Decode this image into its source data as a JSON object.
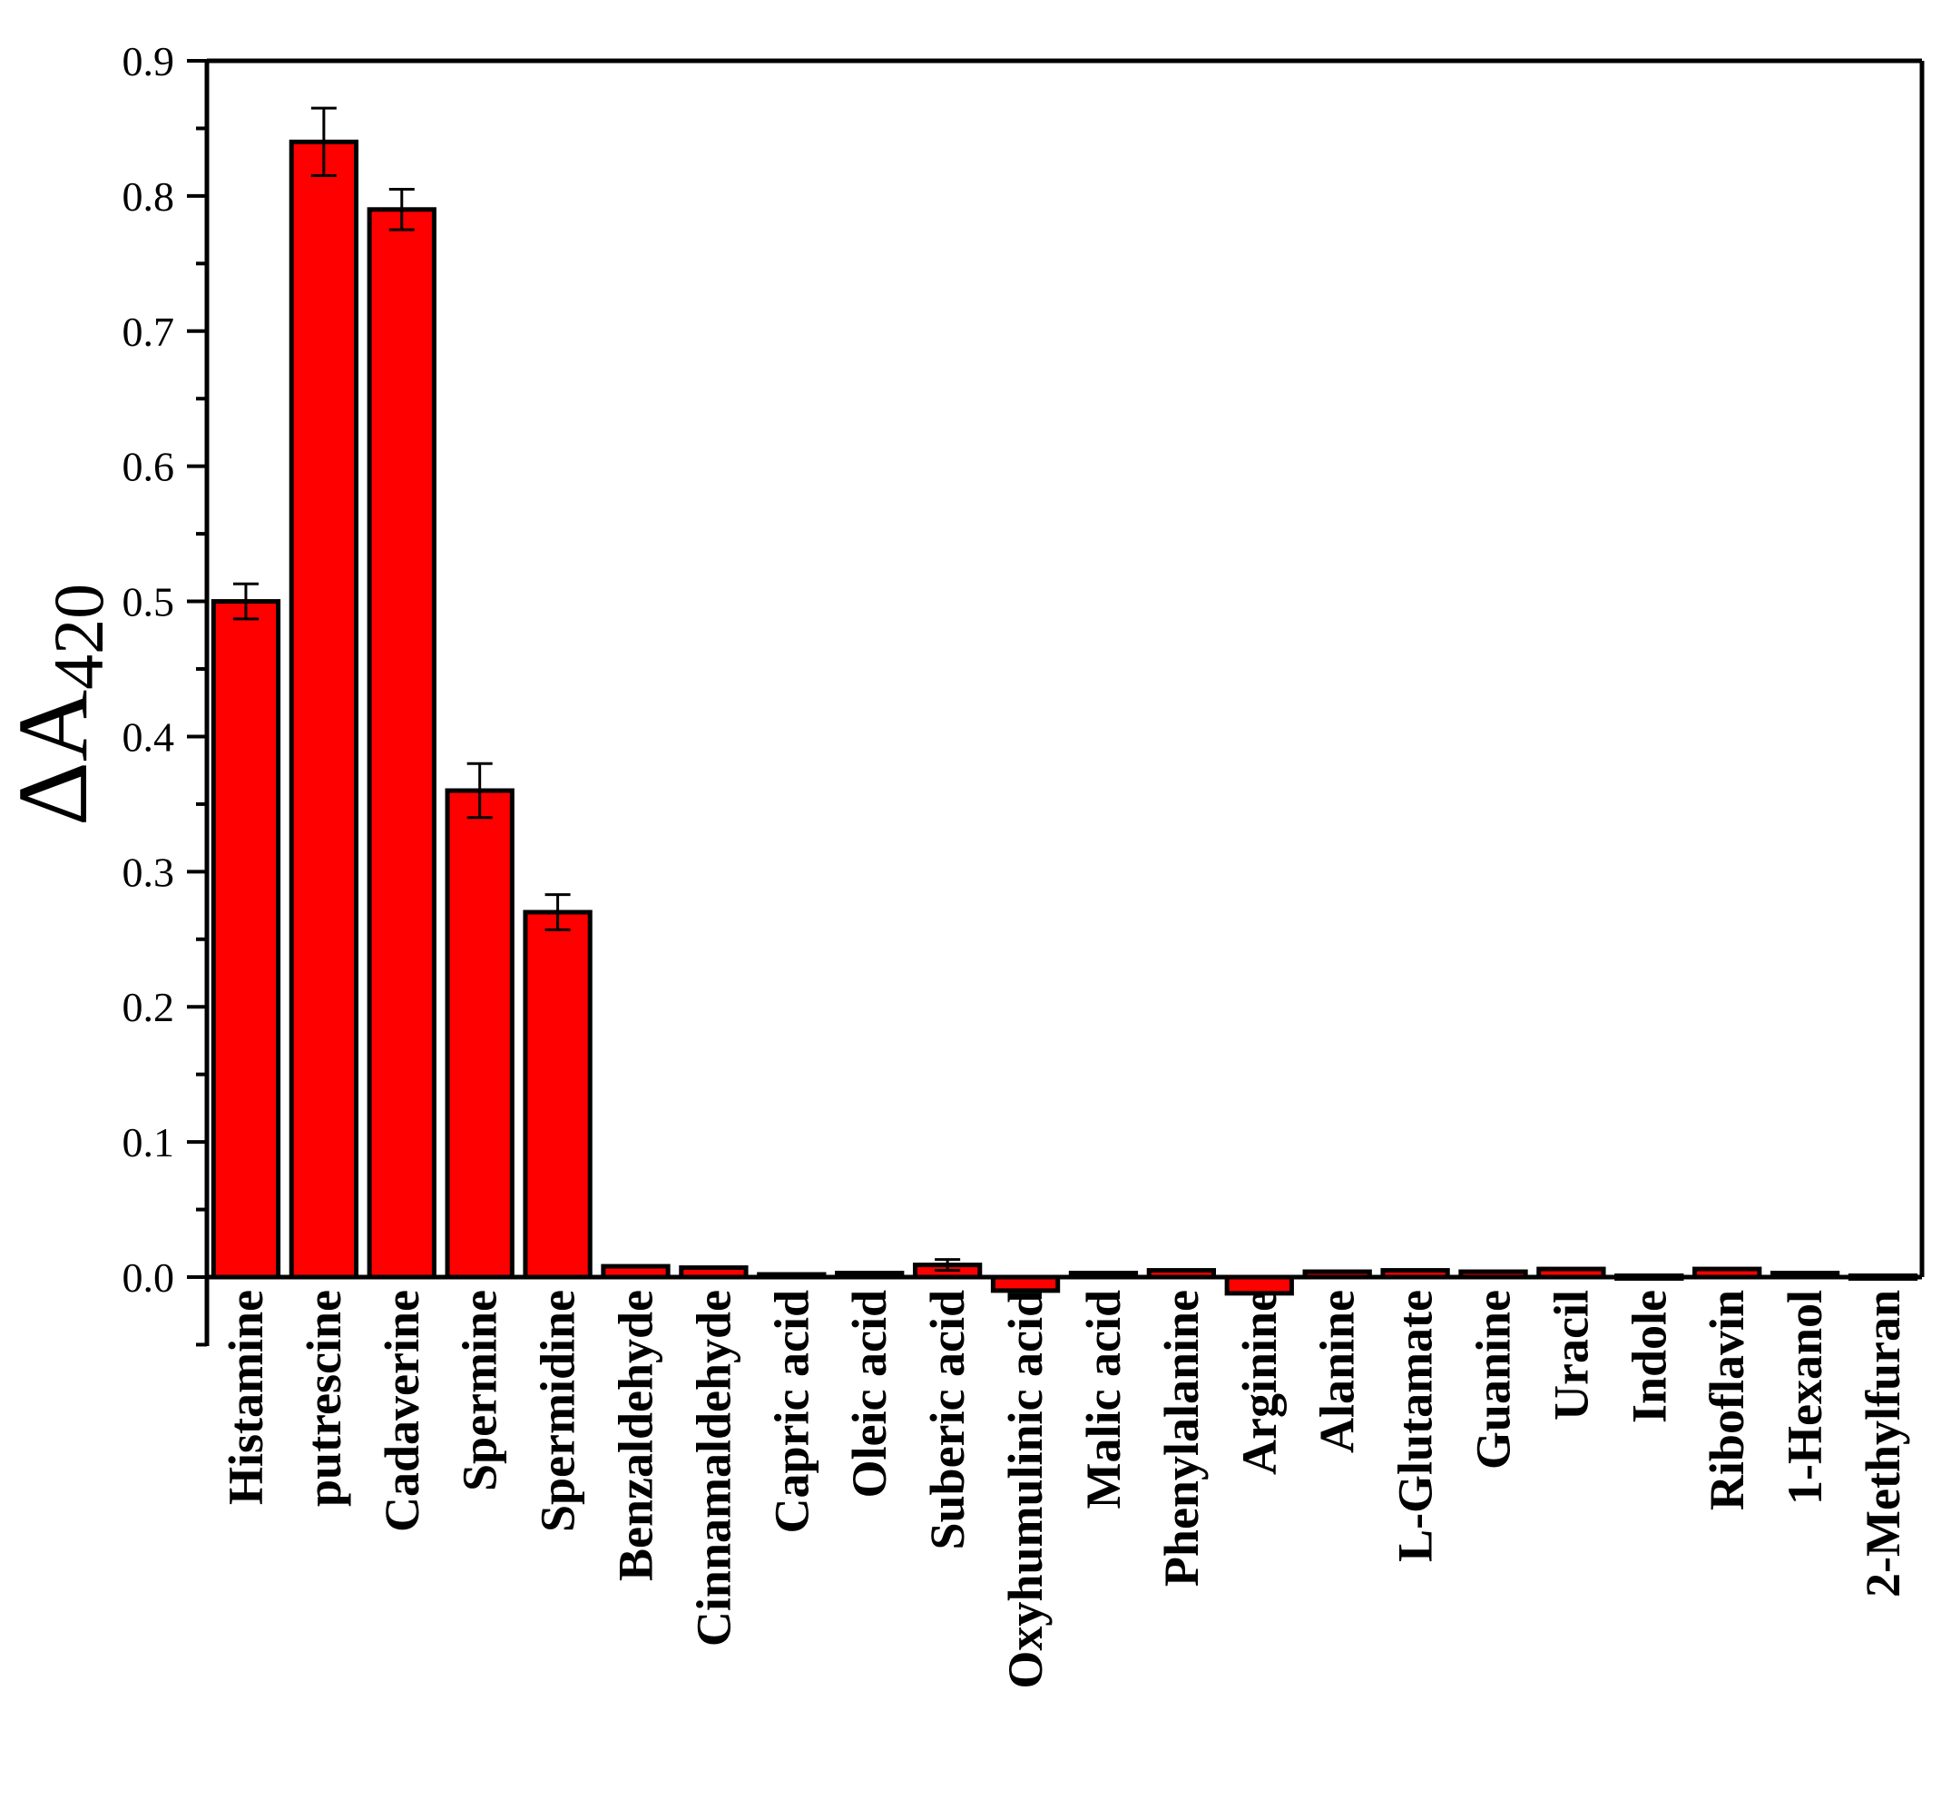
{
  "chart_data": {
    "type": "bar",
    "title": "",
    "xlabel": "",
    "ylabel": "ΔA",
    "ylabel_subscript": "420",
    "ylim": [
      -0.05,
      0.9
    ],
    "yticks": [
      "0.0",
      "0.1",
      "0.2",
      "0.3",
      "0.4",
      "0.5",
      "0.6",
      "0.7",
      "0.8",
      "0.9"
    ],
    "grid": false,
    "legend": "none",
    "bar_color": "#ff0000",
    "edge_color": "#000000",
    "categories": [
      "Histamine",
      "putrescine",
      "Cadaverine",
      "Spermine",
      "Spermidine",
      "Benzaldehyde",
      "Cinnamaldehyde",
      "Capric acid",
      "Oleic acid",
      "Suberic acid",
      "Oxyhumulinic acid",
      "Malic acid",
      "Phenylalanine",
      "Arginine",
      "Alanine",
      "L-Glutamate",
      "Guanine",
      "Uracil",
      "Indole",
      "Riboflavin",
      "1-Hexanol",
      "2-Methylfuran"
    ],
    "values": [
      0.5,
      0.84,
      0.79,
      0.36,
      0.27,
      0.008,
      0.007,
      0.002,
      0.003,
      0.009,
      -0.01,
      0.003,
      0.005,
      -0.012,
      0.004,
      0.005,
      0.004,
      0.006,
      0.001,
      0.006,
      0.003,
      0.001
    ],
    "errors": [
      0.013,
      0.025,
      0.015,
      0.02,
      0.013,
      0.001,
      0.001,
      0.0005,
      0.0005,
      0.004,
      0.001,
      0.0005,
      0.001,
      0.001,
      0.0005,
      0.0005,
      0.0005,
      0.002,
      0.0005,
      0.001,
      0.0005,
      0.0005
    ]
  }
}
